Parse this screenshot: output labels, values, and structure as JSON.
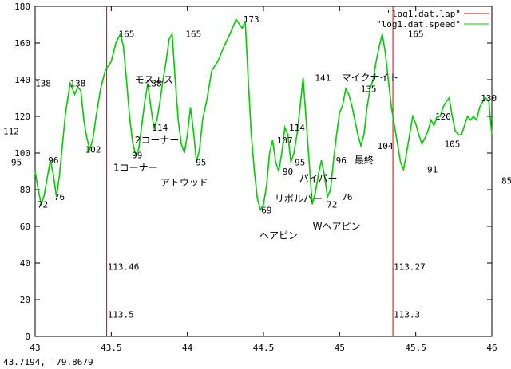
{
  "chart_data": {
    "type": "line",
    "xlim": [
      43,
      46
    ],
    "ylim": [
      0,
      180
    ],
    "x_ticks": [
      "43",
      "43.5",
      "44",
      "44.5",
      "45",
      "45.5",
      "46"
    ],
    "y_ticks": [
      "0",
      "20",
      "40",
      "60",
      "80",
      "100",
      "120",
      "140",
      "160",
      "180"
    ],
    "grid": false,
    "legend_position": "top-right",
    "series": [
      {
        "name": "\"log1.dat.speed\"",
        "color": "#00cc00",
        "x": [
          43.0,
          43.02,
          43.04,
          43.06,
          43.08,
          43.1,
          43.12,
          43.14,
          43.16,
          43.18,
          43.2,
          43.23,
          43.26,
          43.28,
          43.3,
          43.32,
          43.34,
          43.36,
          43.38,
          43.4,
          43.43,
          43.46,
          43.5,
          43.53,
          43.56,
          43.58,
          43.6,
          43.62,
          43.64,
          43.66,
          43.68,
          43.7,
          43.72,
          43.74,
          43.76,
          43.78,
          43.8,
          43.82,
          43.84,
          43.86,
          43.88,
          43.9,
          43.92,
          43.94,
          43.96,
          43.98,
          44.0,
          44.02,
          44.04,
          44.06,
          44.08,
          44.1,
          44.13,
          44.16,
          44.2,
          44.24,
          44.28,
          44.32,
          44.36,
          44.38,
          44.4,
          44.42,
          44.44,
          44.46,
          44.48,
          44.5,
          44.52,
          44.54,
          44.56,
          44.58,
          44.6,
          44.62,
          44.64,
          44.66,
          44.68,
          44.7,
          44.72,
          44.74,
          44.76,
          44.78,
          44.8,
          44.82,
          44.84,
          44.86,
          44.88,
          44.9,
          44.92,
          44.94,
          44.96,
          44.98,
          45.0,
          45.02,
          45.04,
          45.06,
          45.08,
          45.1,
          45.12,
          45.14,
          45.16,
          45.18,
          45.2,
          45.22,
          45.24,
          45.26,
          45.28,
          45.3,
          45.32,
          45.34,
          45.36,
          45.38,
          45.4,
          45.42,
          45.44,
          45.46,
          45.48,
          45.5,
          45.52,
          45.54,
          45.56,
          45.58,
          45.6,
          45.62,
          45.64,
          45.66,
          45.68,
          45.7,
          45.72,
          45.74,
          45.76,
          45.78,
          45.8,
          45.82,
          45.84,
          45.86,
          45.88,
          45.9,
          45.92,
          45.94,
          45.96,
          45.98,
          46.0
        ],
        "y": [
          90,
          80,
          72,
          77,
          87,
          96,
          88,
          76,
          88,
          105,
          122,
          138,
          132,
          136,
          134,
          118,
          108,
          102,
          108,
          120,
          135,
          145,
          150,
          160,
          165,
          158,
          140,
          120,
          106,
          99,
          102,
          115,
          128,
          138,
          125,
          114,
          118,
          128,
          140,
          150,
          162,
          165,
          140,
          118,
          105,
          100,
          110,
          125,
          112,
          95,
          102,
          118,
          130,
          145,
          150,
          158,
          165,
          173,
          168,
          172,
          140,
          110,
          90,
          75,
          69,
          72,
          82,
          100,
          107,
          95,
          90,
          100,
          114,
          110,
          95,
          100,
          110,
          125,
          141,
          118,
          95,
          72,
          78,
          88,
          96,
          88,
          76,
          80,
          96,
          110,
          122,
          126,
          135,
          132,
          126,
          118,
          110,
          104,
          110,
          125,
          135,
          140,
          150,
          158,
          165,
          155,
          140,
          125,
          115,
          105,
          95,
          91,
          100,
          110,
          120,
          116,
          110,
          105,
          108,
          112,
          118,
          115,
          120,
          120,
          125,
          128,
          130,
          120,
          112,
          110,
          110,
          115,
          120,
          118,
          120,
          118,
          125,
          128,
          130,
          128,
          110
        ]
      },
      {
        "name": "\"log1.dat.lap\"",
        "color": "#dd0000",
        "x_positions": [
          43.47,
          45.35
        ]
      }
    ],
    "peak_labels": [
      {
        "x": 43.05,
        "y": 72,
        "text": "72"
      },
      {
        "x": 43.12,
        "y": 96,
        "text": "96"
      },
      {
        "x": 43.16,
        "y": 76,
        "text": "76"
      },
      {
        "x": 43.28,
        "y": 138,
        "text": "138"
      },
      {
        "x": 43.38,
        "y": 102,
        "text": "102"
      },
      {
        "x": 43.6,
        "y": 165,
        "text": "165"
      },
      {
        "x": 43.67,
        "y": 99,
        "text": "99"
      },
      {
        "x": 43.78,
        "y": 138,
        "text": "138"
      },
      {
        "x": 43.82,
        "y": 114,
        "text": "114"
      },
      {
        "x": 44.04,
        "y": 165,
        "text": "165"
      },
      {
        "x": 44.09,
        "y": 95,
        "text": "95"
      },
      {
        "x": 44.42,
        "y": 173,
        "text": "173"
      },
      {
        "x": 44.52,
        "y": 69,
        "text": "69"
      },
      {
        "x": 44.64,
        "y": 107,
        "text": "107"
      },
      {
        "x": 44.66,
        "y": 90,
        "text": "90"
      },
      {
        "x": 44.72,
        "y": 114,
        "text": "114"
      },
      {
        "x": 44.74,
        "y": 95,
        "text": "95"
      },
      {
        "x": 44.89,
        "y": 141,
        "text": "141"
      },
      {
        "x": 44.95,
        "y": 72,
        "text": "72"
      },
      {
        "x": 45.01,
        "y": 96,
        "text": "96"
      },
      {
        "x": 45.05,
        "y": 76,
        "text": "76"
      },
      {
        "x": 45.19,
        "y": 135,
        "text": "135"
      },
      {
        "x": 45.3,
        "y": 104,
        "text": "104"
      },
      {
        "x": 45.5,
        "y": 165,
        "text": "165"
      },
      {
        "x": 45.61,
        "y": 91,
        "text": "91"
      },
      {
        "x": 45.68,
        "y": 120,
        "text": "120"
      },
      {
        "x": 45.74,
        "y": 105,
        "text": "105"
      },
      {
        "x": 45.98,
        "y": 130,
        "text": "130"
      }
    ],
    "annotations": [
      {
        "x": 43.78,
        "y": 140,
        "text": "モスエス",
        "jp": true
      },
      {
        "x": 43.8,
        "y": 107,
        "text": "2コーナー",
        "jp": true
      },
      {
        "x": 43.66,
        "y": 92,
        "text": "1コーナー",
        "jp": true
      },
      {
        "x": 43.98,
        "y": 84,
        "text": "アトウッド",
        "jp": true
      },
      {
        "x": 44.73,
        "y": 75,
        "text": "リボルバー",
        "jp": true
      },
      {
        "x": 44.86,
        "y": 86,
        "text": "パイパー",
        "jp": true
      },
      {
        "x": 44.6,
        "y": 55,
        "text": "ヘアピン",
        "jp": true
      },
      {
        "x": 44.98,
        "y": 60,
        "text": "Wヘアピン",
        "jp": true
      },
      {
        "x": 45.16,
        "y": 96,
        "text": "最終",
        "jp": true
      },
      {
        "x": 45.2,
        "y": 141,
        "text": "マイクナイト",
        "jp": true
      },
      {
        "x": 43.47,
        "y": 38,
        "text": "113.46"
      },
      {
        "x": 43.47,
        "y": 12,
        "text": "113.5"
      },
      {
        "x": 45.35,
        "y": 38,
        "text": "113.27"
      },
      {
        "x": 45.35,
        "y": 12,
        "text": "113.3"
      }
    ],
    "edge_labels": {
      "left_138": "138",
      "left_112": "112",
      "left_95": "95",
      "right_85": "85"
    }
  },
  "status_readout": "43.7194,  79.8679"
}
